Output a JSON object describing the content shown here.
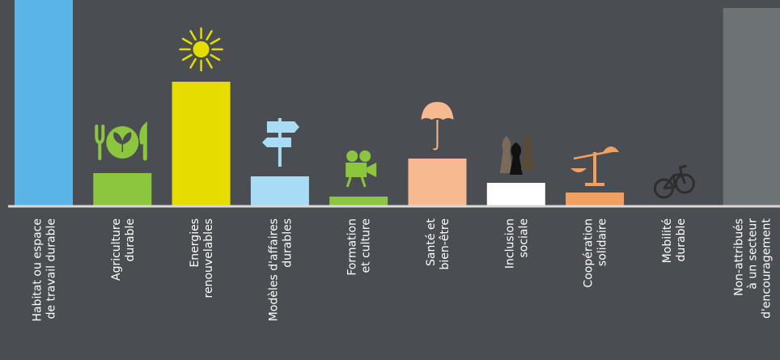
{
  "chart_data": {
    "type": "bar",
    "title": "",
    "xlabel": "",
    "ylabel": "",
    "ylim": [
      0,
      260
    ],
    "grid": false,
    "legend": "none",
    "categories": [
      [
        "Habitat ou espace",
        "de travail durable"
      ],
      [
        "Agriculture",
        "durable"
      ],
      [
        "Energies",
        "renouvelables"
      ],
      [
        "Modèles d'affaires",
        "durables"
      ],
      [
        "Formation",
        "et culture"
      ],
      [
        "Santé et",
        "bien-être"
      ],
      [
        "Inclusion",
        "sociale"
      ],
      [
        "Coopération",
        "solidaire"
      ],
      [
        "Mobilité",
        "durable"
      ],
      [
        "Non-attribués",
        "à un secteur",
        "d'encouragement"
      ]
    ],
    "values": [
      260,
      41,
      154,
      37,
      12,
      59,
      29,
      17,
      0,
      245
    ],
    "colors": [
      "#5bb4e6",
      "#8cc63f",
      "#e6dc00",
      "#a8dcf5",
      "#8cc63f",
      "#f7b990",
      "#ffffff",
      "#f0a060",
      "#2e2e2e",
      "#6d7275"
    ],
    "icons": [
      "none",
      "plate-leaf-icon",
      "sun-icon",
      "signpost-icon",
      "movie-camera-icon",
      "umbrella-icon",
      "pawns-icon",
      "scale-icon",
      "bicycle-icon",
      "none"
    ]
  }
}
